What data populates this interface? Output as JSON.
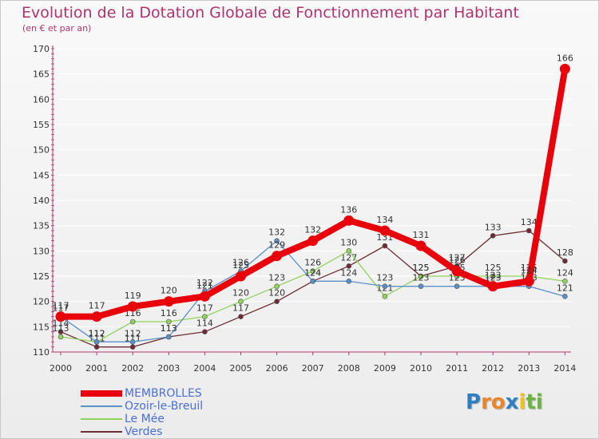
{
  "header": {
    "title": "Evolution de la Dotation Globale de Fonctionnement par Habitant",
    "subtitle": "(en € et par an)"
  },
  "logo": {
    "letters": [
      "P",
      "r",
      "o",
      "x",
      "i",
      "t",
      "i"
    ],
    "colors": [
      "#2e7fc1",
      "#e8862a",
      "#e8862a",
      "#2e7fc1",
      "#f2c018",
      "#6cb33f",
      "#6cb33f"
    ]
  },
  "chart_data": {
    "type": "line",
    "title": "Evolution de la Dotation Globale de Fonctionnement par Habitant",
    "subtitle": "(en € et par an)",
    "xlabel": "",
    "ylabel": "",
    "x": [
      "2000",
      "2001",
      "2002",
      "2003",
      "2004",
      "2005",
      "2006",
      "2007",
      "2008",
      "2009",
      "2010",
      "2011",
      "2012",
      "2013",
      "2014"
    ],
    "ylim": [
      110,
      170
    ],
    "yticks": [
      110,
      115,
      120,
      125,
      130,
      135,
      140,
      145,
      150,
      155,
      160,
      165,
      170
    ],
    "grid": "horizontal",
    "series": [
      {
        "name": "MEMBROLLES",
        "color": "#e8000b",
        "values": [
          117,
          117,
          119,
          120,
          121,
          125,
          129,
          132,
          136,
          134,
          131,
          126,
          123,
          124,
          166
        ],
        "labels": [
          "117",
          "117",
          "119",
          "120",
          "121",
          "125",
          "129",
          "132",
          "136",
          "134",
          "131",
          "126",
          "123",
          "124",
          "166"
        ]
      },
      {
        "name": "Ozoir-le-Breuil",
        "color": "#5b8fc7",
        "values": [
          117,
          112,
          112,
          113,
          122,
          126,
          132,
          124,
          124,
          123,
          123,
          123,
          123,
          123,
          121
        ],
        "labels": [
          "117",
          "112",
          "112",
          "113",
          "122",
          "126",
          "132",
          "124",
          "124",
          "123",
          "123",
          "123",
          "123",
          "123",
          "121"
        ]
      },
      {
        "name": "Le Mée",
        "color": "#8fd35c",
        "values": [
          113,
          112,
          116,
          116,
          117,
          120,
          123,
          126,
          130,
          121,
          125,
          125,
          125,
          125,
          124
        ],
        "labels": [
          "113",
          "112",
          "116",
          "116",
          "117",
          "120",
          "123",
          "126",
          "130",
          "121",
          "125",
          "125",
          "125",
          "125",
          "124"
        ]
      },
      {
        "name": "Verdes",
        "color": "#6e2a36",
        "values": [
          114,
          111,
          111,
          113,
          114,
          117,
          120,
          124,
          127,
          131,
          125,
          127,
          133,
          134,
          128
        ],
        "labels": [
          "114",
          "111",
          "111",
          "113",
          "114",
          "117",
          "120",
          "124",
          "127",
          "131",
          "125",
          "127",
          "133",
          "134",
          "128"
        ]
      }
    ],
    "legend": [
      "MEMBROLLES",
      "Ozoir-le-Breuil",
      "Le Mée",
      "Verdes"
    ],
    "legend_position": "bottom-left"
  }
}
